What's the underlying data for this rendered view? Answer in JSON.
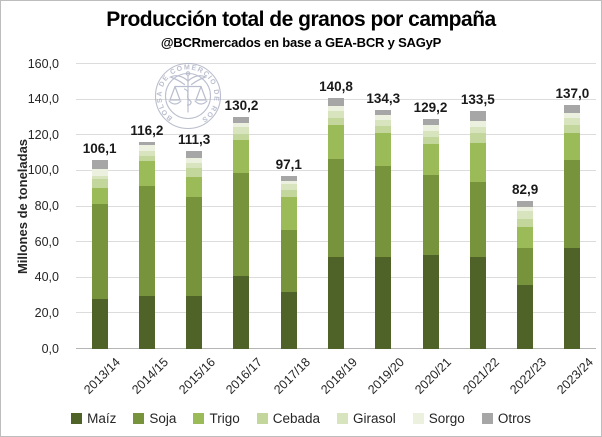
{
  "chart_data": {
    "type": "bar",
    "stacked": true,
    "title": "Producción total de granos por campaña",
    "subtitle": "@BCRmercados en base a GEA-BCR y SAGyP",
    "ylabel": "Millones de toneladas",
    "ylim": [
      0,
      160
    ],
    "ytick_step": 20,
    "grid": "horizontal",
    "legend_position": "bottom",
    "decimal_separator": ",",
    "categories": [
      "2013/14",
      "2014/15",
      "2015/16",
      "2016/17",
      "2017/18",
      "2018/19",
      "2019/20",
      "2020/21",
      "2021/22",
      "2022/23",
      "2023/24"
    ],
    "totals": [
      106.1,
      116.2,
      111.3,
      130.2,
      97.1,
      140.8,
      134.3,
      129.2,
      133.5,
      82.9,
      137.0
    ],
    "series": [
      {
        "name": "Maíz",
        "color": "#4f6228",
        "values": [
          28.0,
          30.0,
          30.0,
          41.0,
          32.0,
          51.5,
          51.5,
          52.5,
          51.5,
          36.0,
          56.5
        ]
      },
      {
        "name": "Soja",
        "color": "#77933c",
        "values": [
          53.4,
          61.4,
          55.3,
          57.8,
          35.0,
          55.3,
          51.0,
          45.0,
          42.2,
          20.5,
          49.5
        ]
      },
      {
        "name": "Trigo",
        "color": "#9bbb59",
        "values": [
          9.2,
          13.9,
          11.3,
          18.4,
          18.5,
          19.0,
          18.8,
          17.6,
          22.1,
          12.0,
          15.1
        ]
      },
      {
        "name": "Cebada",
        "color": "#c3d69b",
        "values": [
          4.7,
          2.9,
          4.9,
          3.7,
          3.7,
          4.1,
          3.8,
          4.1,
          5.4,
          4.4,
          4.7
        ]
      },
      {
        "name": "Girasol",
        "color": "#d7e4bd",
        "values": [
          2.1,
          3.2,
          3.0,
          3.5,
          3.5,
          3.8,
          3.3,
          3.2,
          3.4,
          4.5,
          3.8
        ]
      },
      {
        "name": "Sorgo",
        "color": "#ebf1de",
        "values": [
          3.5,
          3.1,
          3.0,
          2.5,
          1.5,
          2.6,
          2.9,
          3.3,
          3.5,
          2.5,
          3.2
        ]
      },
      {
        "name": "Otros",
        "color": "#a6a6a6",
        "values": [
          5.2,
          1.7,
          3.8,
          3.3,
          2.9,
          4.5,
          3.0,
          3.5,
          5.4,
          3.0,
          4.2
        ]
      }
    ]
  },
  "watermark": {
    "ring_text": "BOLSA DE COMERCIO DE ROSARIO"
  },
  "colors": {
    "grid": "#dcdcdc",
    "axis_line": "#b5b5b5",
    "text": "#262626",
    "watermark": "#a9afc3",
    "background": "#ffffff"
  }
}
